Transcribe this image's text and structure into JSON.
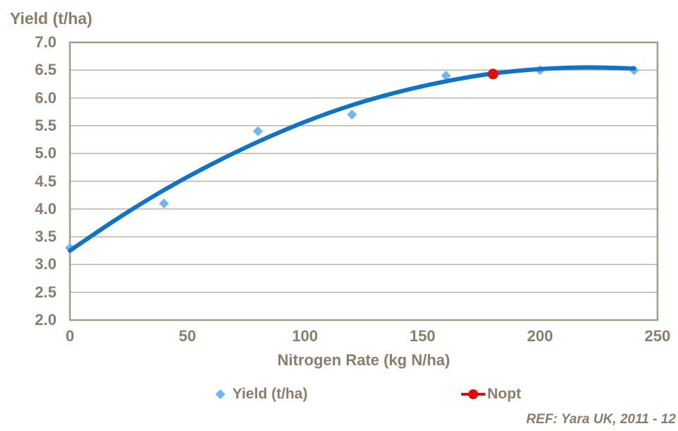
{
  "chart_title": "Yield (t/ha)",
  "ref_note": "REF: Yara UK, 2011 - 12",
  "colors": {
    "text_brown": "#8C7D6A",
    "gridline": "#BFB3A2",
    "plot_border": "#A69A88",
    "curve_blue": "#1173C5",
    "point_blue": "#6FB6F5",
    "nopt_red": "#E00B0B"
  },
  "chart_data": {
    "type": "scatter",
    "title": "Yield (t/ha)",
    "xlabel": "Nitrogen Rate (kg N/ha)",
    "ylabel": "Yield (t/ha)",
    "xlim": [
      0,
      250
    ],
    "ylim": [
      2.0,
      7.0
    ],
    "xticks": [
      "0",
      "50",
      "100",
      "150",
      "200",
      "250"
    ],
    "yticks": [
      "7.0",
      "6.5",
      "6.0",
      "5.5",
      "5.0",
      "4.5",
      "4.0",
      "3.5",
      "3.0",
      "2.5",
      "2.0"
    ],
    "grid": "horizontal",
    "legend_position": "bottom",
    "series": [
      {
        "name": "Yield (t/ha)",
        "marker": "diamond",
        "points": [
          [
            0,
            3.3
          ],
          [
            40,
            4.1
          ],
          [
            80,
            5.4
          ],
          [
            120,
            5.7
          ],
          [
            160,
            6.4
          ],
          [
            200,
            6.5
          ],
          [
            240,
            6.5
          ]
        ]
      },
      {
        "name": "Nopt",
        "marker": "circle",
        "points": [
          [
            180,
            6.43
          ]
        ]
      }
    ],
    "trendline": {
      "series": "Yield (t/ha)",
      "shape": "quadratic",
      "points": [
        [
          0,
          3.25
        ],
        [
          20,
          3.82
        ],
        [
          40,
          4.34
        ],
        [
          60,
          4.8
        ],
        [
          80,
          5.21
        ],
        [
          100,
          5.57
        ],
        [
          120,
          5.87
        ],
        [
          140,
          6.11
        ],
        [
          160,
          6.3
        ],
        [
          180,
          6.44
        ],
        [
          200,
          6.52
        ],
        [
          220,
          6.55
        ],
        [
          240,
          6.53
        ]
      ]
    }
  }
}
